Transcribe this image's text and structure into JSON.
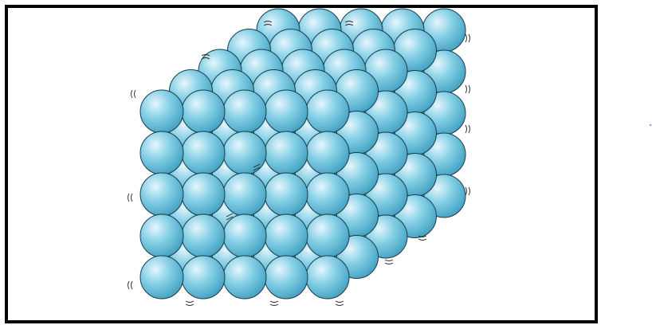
{
  "figure": {
    "subject": "sphere-lattice",
    "border_color": "#000000",
    "sphere_fill_light": "#e6f6fc",
    "sphere_fill_mid": "#86d0e6",
    "sphere_fill_dark": "#3f9fc0",
    "sphere_outline": "#1b3d4a",
    "background": "#ffffff"
  },
  "lattice": {
    "rows": 5,
    "columns": 5,
    "layers": 5
  }
}
